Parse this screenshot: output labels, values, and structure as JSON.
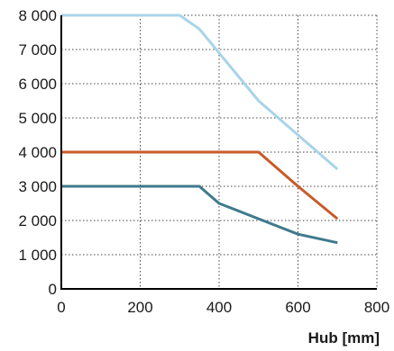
{
  "chart_data": {
    "type": "line",
    "title": "",
    "xlabel": "Hub [mm]",
    "ylabel": "",
    "xlim": [
      0,
      800
    ],
    "ylim": [
      0,
      8000
    ],
    "x_ticks": [
      0,
      200,
      400,
      600,
      800
    ],
    "x_tick_labels": [
      "0",
      "200",
      "400",
      "600",
      "800"
    ],
    "y_ticks": [
      0,
      1000,
      2000,
      3000,
      4000,
      5000,
      6000,
      7000,
      8000
    ],
    "y_tick_labels": [
      "0",
      "1 000",
      "2 000",
      "3 000",
      "4 000",
      "5 000",
      "6 000",
      "7 000",
      "8 000"
    ],
    "grid": true,
    "grid_style": "dotted",
    "series": [
      {
        "color": "#a8d4e8",
        "x": [
          0,
          300,
          350,
          400,
          500,
          600,
          700
        ],
        "y": [
          8000,
          8000,
          7600,
          6900,
          5500,
          4500,
          3500
        ]
      },
      {
        "color": "#c85a2a",
        "x": [
          0,
          500,
          600,
          700
        ],
        "y": [
          4000,
          4000,
          3000,
          2050
        ]
      },
      {
        "color": "#3f7a8c",
        "x": [
          0,
          350,
          400,
          500,
          600,
          700
        ],
        "y": [
          3000,
          3000,
          2500,
          2050,
          1600,
          1350
        ]
      }
    ]
  }
}
